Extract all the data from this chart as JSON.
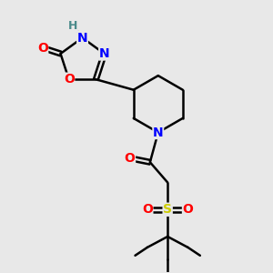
{
  "bg_color": "#e8e8e8",
  "bond_color": "#000000",
  "atom_colors": {
    "N": "#0000ff",
    "O": "#ff0000",
    "S": "#cccc00",
    "H": "#4a8a8a",
    "C": "#000000"
  },
  "bond_width": 1.8,
  "dbo": 0.09,
  "font_size": 10,
  "fig_size": [
    3.0,
    3.0
  ],
  "dpi": 100
}
